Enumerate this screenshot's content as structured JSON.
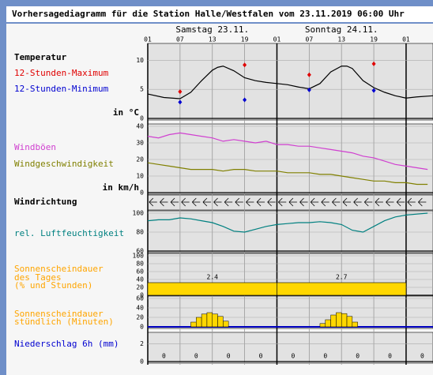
{
  "title": "Vorhersagediagramm für die Station Halle/Westfalen vom 23.11.2019 06:00 Uhr",
  "days": [
    "Samstag 23.11.",
    "Sonntag 24.11."
  ],
  "hour_labels": [
    "01",
    "07",
    "13",
    "19",
    "01",
    "07",
    "13",
    "19",
    "01"
  ],
  "wind_direction_label": "Windrichtung",
  "chart_data": [
    {
      "type": "line",
      "xlim": [
        0,
        53
      ],
      "ylim": [
        0,
        12.5
      ],
      "yticks": [
        0,
        5,
        10
      ],
      "unit_label": "in °C",
      "x": [
        0,
        3,
        6,
        8,
        10,
        12,
        13,
        14,
        16,
        18,
        20,
        22,
        24,
        26,
        28,
        30,
        32,
        34,
        36,
        37,
        38,
        40,
        42,
        44,
        46,
        48,
        50,
        53
      ],
      "series": [
        {
          "name": "Temperatur",
          "color": "#000000",
          "values": [
            4.2,
            3.6,
            3.4,
            4.5,
            6.5,
            8.3,
            8.8,
            9,
            8.2,
            7,
            6.5,
            6.2,
            6,
            5.8,
            5.4,
            5.1,
            6,
            8,
            9,
            9,
            8.6,
            6.5,
            5.3,
            4.5,
            3.9,
            3.5,
            3.7,
            3.9
          ]
        },
        {
          "name": "12-Stunden-Maximum",
          "color": "#e00000",
          "style": "points",
          "x": [
            6,
            18,
            30,
            42
          ],
          "values": [
            4.6,
            9.2,
            7.5,
            9.4
          ]
        },
        {
          "name": "12-Stunden-Minimum",
          "color": "#0000d0",
          "style": "points",
          "x": [
            6,
            18,
            30,
            42
          ],
          "values": [
            2.8,
            3.2,
            4.9,
            4.8
          ]
        }
      ]
    },
    {
      "type": "line",
      "xlim": [
        0,
        53
      ],
      "ylim": [
        0,
        40
      ],
      "yticks": [
        0,
        10,
        20,
        30,
        40
      ],
      "unit_label": "in km/h",
      "x": [
        0,
        2,
        4,
        6,
        8,
        10,
        12,
        14,
        16,
        18,
        20,
        22,
        24,
        26,
        28,
        30,
        32,
        34,
        36,
        38,
        40,
        42,
        44,
        46,
        48,
        50,
        52
      ],
      "series": [
        {
          "name": "Windböen",
          "color": "#d040d0",
          "values": [
            34,
            33,
            35,
            36,
            35,
            34,
            33,
            31,
            32,
            31,
            30,
            31,
            29,
            29,
            28,
            28,
            27,
            26,
            25,
            24,
            22,
            21,
            19,
            17,
            16,
            15,
            14
          ]
        },
        {
          "name": "Windgeschwindigkeit",
          "color": "#808000",
          "values": [
            18,
            17,
            16,
            15,
            14,
            14,
            14,
            13,
            14,
            14,
            13,
            13,
            13,
            12,
            12,
            12,
            11,
            11,
            10,
            9,
            8,
            7,
            7,
            6,
            6,
            5,
            5
          ]
        }
      ]
    },
    {
      "type": "line",
      "xlim": [
        0,
        53
      ],
      "ylim": [
        60,
        100
      ],
      "yticks": [
        60,
        80,
        100
      ],
      "x": [
        0,
        2,
        4,
        6,
        8,
        10,
        12,
        14,
        16,
        18,
        20,
        22,
        24,
        26,
        28,
        30,
        32,
        34,
        36,
        38,
        40,
        42,
        44,
        46,
        48,
        50,
        52
      ],
      "series": [
        {
          "name": "rel. Luftfeuchtigkeit",
          "color": "#008080",
          "values": [
            92,
            93,
            93,
            95,
            94,
            92,
            90,
            86,
            81,
            80,
            83,
            86,
            88,
            89,
            90,
            90,
            91,
            90,
            88,
            82,
            80,
            86,
            92,
            96,
            98,
            99,
            100
          ]
        }
      ]
    },
    {
      "type": "daybar",
      "xlim": [
        0,
        53
      ],
      "ylim": [
        0,
        100
      ],
      "yticks": [
        0,
        20,
        40,
        60,
        80,
        100
      ],
      "title_lines": [
        "Sonnenscheindauer",
        "des Tages",
        "(% und Stunden)"
      ],
      "color": "#ffd700",
      "x_start": [
        0,
        24
      ],
      "x_end": [
        24,
        48
      ],
      "values": [
        32,
        32
      ],
      "hours": [
        2.4,
        2.7
      ]
    },
    {
      "type": "hourbar",
      "xlim": [
        0,
        53
      ],
      "ylim": [
        0,
        60
      ],
      "yticks": [
        0,
        20,
        40,
        60
      ],
      "title_lines": [
        "Sonnenscheindauer",
        "stündlich (Minuten)"
      ],
      "color": "#ffd700",
      "x": [
        8,
        9,
        10,
        11,
        12,
        13,
        14,
        32,
        33,
        34,
        35,
        36,
        37,
        38
      ],
      "values": [
        10,
        20,
        27,
        30,
        27,
        22,
        12,
        7,
        15,
        25,
        30,
        28,
        22,
        10
      ]
    },
    {
      "type": "precip",
      "xlim": [
        0,
        53
      ],
      "ylim": [
        0,
        3
      ],
      "yticks": [
        0,
        2
      ],
      "title": "Niederschlag 6h (mm)",
      "x": [
        3,
        9,
        15,
        21,
        27,
        33,
        39,
        45,
        51
      ],
      "values": [
        0,
        0,
        0,
        0,
        0,
        0,
        0,
        0,
        0
      ]
    }
  ]
}
